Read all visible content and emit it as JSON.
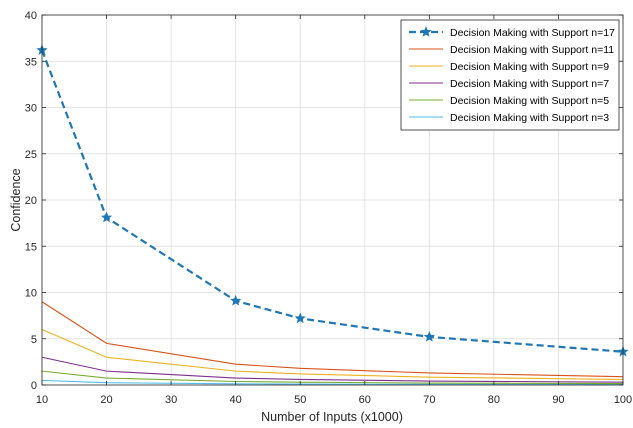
{
  "chart_data": {
    "type": "line",
    "xlabel": "Number of Inputs (x1000)",
    "ylabel": "Confidence",
    "xlim": [
      10,
      100
    ],
    "ylim": [
      0,
      40
    ],
    "xticks": [
      10,
      20,
      30,
      40,
      50,
      60,
      70,
      80,
      90,
      100
    ],
    "yticks": [
      0,
      5,
      10,
      15,
      20,
      25,
      30,
      35,
      40
    ],
    "grid": true,
    "legend_position": "top-right",
    "series": [
      {
        "name": "Decision Making with Support  n=17",
        "color": "#1f77b4",
        "style": "dashed",
        "marker": "star",
        "x": [
          10,
          20,
          40,
          50,
          70,
          100
        ],
        "y": [
          36.2,
          18.1,
          9.1,
          7.2,
          5.2,
          3.6
        ]
      },
      {
        "name": "Decision Making with Support  n=11",
        "color": "#d95319",
        "style": "solid",
        "x": [
          10,
          20,
          40,
          50,
          70,
          100
        ],
        "y": [
          9.0,
          4.5,
          2.25,
          1.8,
          1.3,
          0.9
        ]
      },
      {
        "name": "Decision Making with Support  n=9",
        "color": "#edb120",
        "style": "solid",
        "x": [
          10,
          20,
          40,
          50,
          70,
          100
        ],
        "y": [
          6.0,
          3.0,
          1.5,
          1.2,
          0.85,
          0.6
        ]
      },
      {
        "name": "Decision Making with Support  n=7",
        "color": "#7e2f8e",
        "style": "solid",
        "x": [
          10,
          20,
          40,
          50,
          70,
          100
        ],
        "y": [
          3.0,
          1.5,
          0.75,
          0.6,
          0.43,
          0.3
        ]
      },
      {
        "name": "Decision Making with Support  n=5",
        "color": "#77ac30",
        "style": "solid",
        "x": [
          10,
          20,
          40,
          50,
          70,
          100
        ],
        "y": [
          1.5,
          0.75,
          0.38,
          0.3,
          0.21,
          0.15
        ]
      },
      {
        "name": "Decision Making with Support  n=3",
        "color": "#4dbeee",
        "style": "solid",
        "x": [
          10,
          20,
          40,
          50,
          70,
          100
        ],
        "y": [
          0.5,
          0.25,
          0.13,
          0.1,
          0.07,
          0.05
        ]
      }
    ]
  }
}
